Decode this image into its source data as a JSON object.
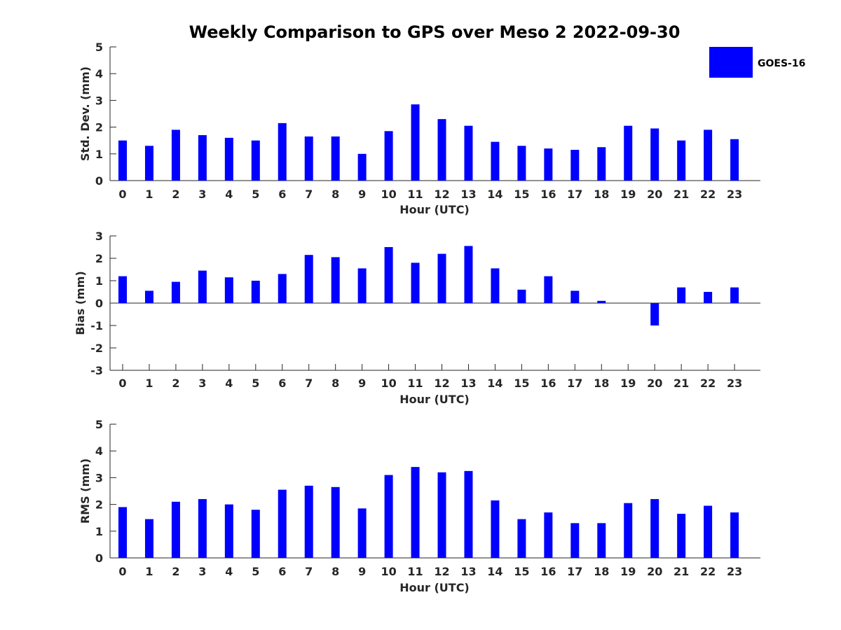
{
  "chart_data": {
    "title": "Weekly Comparison to GPS over Meso 2 2022-09-30",
    "legend": {
      "label": "GOES-16",
      "color": "#0000ff",
      "placement": "top-right"
    },
    "series_color": "#0000ff",
    "panels": [
      {
        "type": "bar",
        "id": "std",
        "xlabel": "Hour (UTC)",
        "ylabel": "Std. Dev. (mm)",
        "ylim": [
          0,
          5
        ],
        "yticks": [
          0,
          1,
          2,
          3,
          4,
          5
        ],
        "categories": [
          0,
          1,
          2,
          3,
          4,
          5,
          6,
          7,
          8,
          9,
          10,
          11,
          12,
          13,
          14,
          15,
          16,
          17,
          18,
          19,
          20,
          21,
          22,
          23
        ],
        "values": [
          1.5,
          1.3,
          1.9,
          1.7,
          1.6,
          1.5,
          2.15,
          1.65,
          1.65,
          1.0,
          1.85,
          2.85,
          2.3,
          2.05,
          1.45,
          1.3,
          1.2,
          1.15,
          1.25,
          2.05,
          1.95,
          1.5,
          1.9,
          1.55
        ]
      },
      {
        "type": "bar",
        "id": "bias",
        "xlabel": "Hour (UTC)",
        "ylabel": "Bias (mm)",
        "ylim": [
          -3,
          3
        ],
        "yticks": [
          -3,
          -2,
          -1,
          0,
          1,
          2,
          3
        ],
        "categories": [
          0,
          1,
          2,
          3,
          4,
          5,
          6,
          7,
          8,
          9,
          10,
          11,
          12,
          13,
          14,
          15,
          16,
          17,
          18,
          19,
          20,
          21,
          22,
          23
        ],
        "values": [
          1.2,
          0.55,
          0.95,
          1.45,
          1.15,
          1.0,
          1.3,
          2.15,
          2.05,
          1.55,
          2.5,
          1.8,
          2.2,
          2.55,
          1.55,
          0.6,
          1.2,
          0.55,
          0.1,
          0.0,
          -1.0,
          0.7,
          0.5,
          0.7
        ]
      },
      {
        "type": "bar",
        "id": "rms",
        "xlabel": "Hour (UTC)",
        "ylabel": "RMS (mm)",
        "ylim": [
          0,
          5
        ],
        "yticks": [
          0,
          1,
          2,
          3,
          4,
          5
        ],
        "categories": [
          0,
          1,
          2,
          3,
          4,
          5,
          6,
          7,
          8,
          9,
          10,
          11,
          12,
          13,
          14,
          15,
          16,
          17,
          18,
          19,
          20,
          21,
          22,
          23
        ],
        "values": [
          1.9,
          1.45,
          2.1,
          2.2,
          2.0,
          1.8,
          2.55,
          2.7,
          2.65,
          1.85,
          3.1,
          3.4,
          3.2,
          3.25,
          2.15,
          1.45,
          1.7,
          1.3,
          1.3,
          2.05,
          2.2,
          1.65,
          1.95,
          1.7
        ]
      }
    ]
  }
}
